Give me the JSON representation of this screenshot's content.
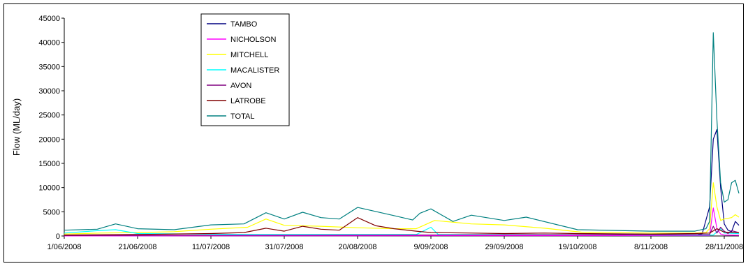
{
  "chart_data": {
    "type": "line",
    "title": "",
    "xlabel": "",
    "ylabel": "Flow (ML/day)",
    "ylim": [
      0,
      45000
    ],
    "yticks": [
      0,
      5000,
      10000,
      15000,
      20000,
      25000,
      30000,
      35000,
      40000,
      45000
    ],
    "xlim": [
      "2008-06-01",
      "2008-12-02"
    ],
    "xtick_dates": [
      "2008-06-01",
      "2008-06-21",
      "2008-07-11",
      "2008-07-31",
      "2008-08-20",
      "2008-09-09",
      "2008-09-29",
      "2008-10-19",
      "2008-11-08",
      "2008-11-28"
    ],
    "xtick_labels": [
      "1/06/2008",
      "21/06/2008",
      "11/07/2008",
      "31/07/2008",
      "20/08/2008",
      "9/09/2008",
      "29/09/2008",
      "19/10/2008",
      "8/11/2008",
      "28/11/2008"
    ],
    "grid": false,
    "legend_position": "top-left",
    "series": [
      {
        "name": "TAMBO",
        "color": "#000080",
        "x": [
          "2008-06-01",
          "2008-08-20",
          "2008-11-20",
          "2008-11-22",
          "2008-11-24",
          "2008-11-25",
          "2008-11-26",
          "2008-11-27",
          "2008-11-28",
          "2008-11-29",
          "2008-11-30",
          "2008-12-01",
          "2008-12-02"
        ],
        "values": [
          50,
          80,
          150,
          500,
          6000,
          20000,
          22000,
          10000,
          2500,
          1200,
          900,
          3000,
          2200
        ]
      },
      {
        "name": "NICHOLSON",
        "color": "#ff00ff",
        "x": [
          "2008-06-01",
          "2008-11-24",
          "2008-11-25",
          "2008-11-26",
          "2008-11-27",
          "2008-11-28",
          "2008-12-02"
        ],
        "values": [
          20,
          100,
          5800,
          1500,
          400,
          200,
          150
        ]
      },
      {
        "name": "MITCHELL",
        "color": "#ffff00",
        "x": [
          "2008-06-01",
          "2008-06-11",
          "2008-06-21",
          "2008-07-01",
          "2008-07-11",
          "2008-07-21",
          "2008-07-26",
          "2008-07-31",
          "2008-08-10",
          "2008-08-20",
          "2008-08-30",
          "2008-09-05",
          "2008-09-10",
          "2008-09-20",
          "2008-09-29",
          "2008-10-10",
          "2008-10-20",
          "2008-11-08",
          "2008-11-20",
          "2008-11-23",
          "2008-11-24",
          "2008-11-25",
          "2008-11-26",
          "2008-11-27",
          "2008-11-28",
          "2008-11-30",
          "2008-12-01",
          "2008-12-02"
        ],
        "values": [
          400,
          600,
          700,
          900,
          1400,
          1800,
          3500,
          2200,
          2000,
          1700,
          1500,
          1500,
          3200,
          2500,
          2300,
          1600,
          800,
          600,
          600,
          700,
          1500,
          11000,
          6000,
          3200,
          3500,
          3800,
          4400,
          3900
        ]
      },
      {
        "name": "MACALISTER",
        "color": "#00ffff",
        "x": [
          "2008-06-01",
          "2008-06-10",
          "2008-06-15",
          "2008-06-21",
          "2008-07-20",
          "2008-09-05",
          "2008-09-09",
          "2008-09-11",
          "2008-11-25",
          "2008-11-27",
          "2008-11-28",
          "2008-12-02"
        ],
        "values": [
          600,
          1100,
          1300,
          500,
          300,
          300,
          1800,
          300,
          200,
          1500,
          600,
          500
        ]
      },
      {
        "name": "AVON",
        "color": "#800080",
        "x": [
          "2008-06-01",
          "2008-09-09",
          "2008-11-24",
          "2008-11-25",
          "2008-11-26",
          "2008-11-27",
          "2008-11-28",
          "2008-11-29",
          "2008-11-30",
          "2008-12-02"
        ],
        "values": [
          100,
          200,
          300,
          2000,
          600,
          1800,
          1000,
          500,
          1100,
          700
        ]
      },
      {
        "name": "LATROBE",
        "color": "#800000",
        "x": [
          "2008-06-01",
          "2008-06-21",
          "2008-07-11",
          "2008-07-20",
          "2008-07-26",
          "2008-07-31",
          "2008-08-05",
          "2008-08-10",
          "2008-08-15",
          "2008-08-20",
          "2008-08-25",
          "2008-08-30",
          "2008-09-05",
          "2008-09-09",
          "2008-09-20",
          "2008-09-29",
          "2008-10-10",
          "2008-10-19",
          "2008-11-08",
          "2008-11-20",
          "2008-11-24",
          "2008-11-26",
          "2008-11-28",
          "2008-12-02"
        ],
        "values": [
          200,
          300,
          500,
          700,
          1600,
          1000,
          2000,
          1400,
          1200,
          3800,
          2100,
          1500,
          1000,
          700,
          600,
          500,
          600,
          500,
          400,
          500,
          600,
          1500,
          800,
          700
        ]
      },
      {
        "name": "TOTAL",
        "color": "#008080",
        "x": [
          "2008-06-01",
          "2008-06-10",
          "2008-06-15",
          "2008-06-21",
          "2008-07-01",
          "2008-07-11",
          "2008-07-20",
          "2008-07-26",
          "2008-07-31",
          "2008-08-05",
          "2008-08-10",
          "2008-08-15",
          "2008-08-20",
          "2008-08-30",
          "2008-09-04",
          "2008-09-06",
          "2008-09-09",
          "2008-09-15",
          "2008-09-20",
          "2008-09-29",
          "2008-10-05",
          "2008-10-19",
          "2008-11-08",
          "2008-11-20",
          "2008-11-23",
          "2008-11-24",
          "2008-11-25",
          "2008-11-26",
          "2008-11-27",
          "2008-11-28",
          "2008-11-29",
          "2008-11-30",
          "2008-12-01",
          "2008-12-02"
        ],
        "values": [
          1200,
          1400,
          2500,
          1500,
          1300,
          2300,
          2500,
          4800,
          3500,
          4900,
          3800,
          3500,
          5900,
          4200,
          3300,
          4700,
          5600,
          3000,
          4300,
          3200,
          3900,
          1300,
          1000,
          1000,
          1500,
          3000,
          42000,
          24000,
          11000,
          7000,
          7500,
          11000,
          11500,
          8800
        ]
      }
    ]
  }
}
